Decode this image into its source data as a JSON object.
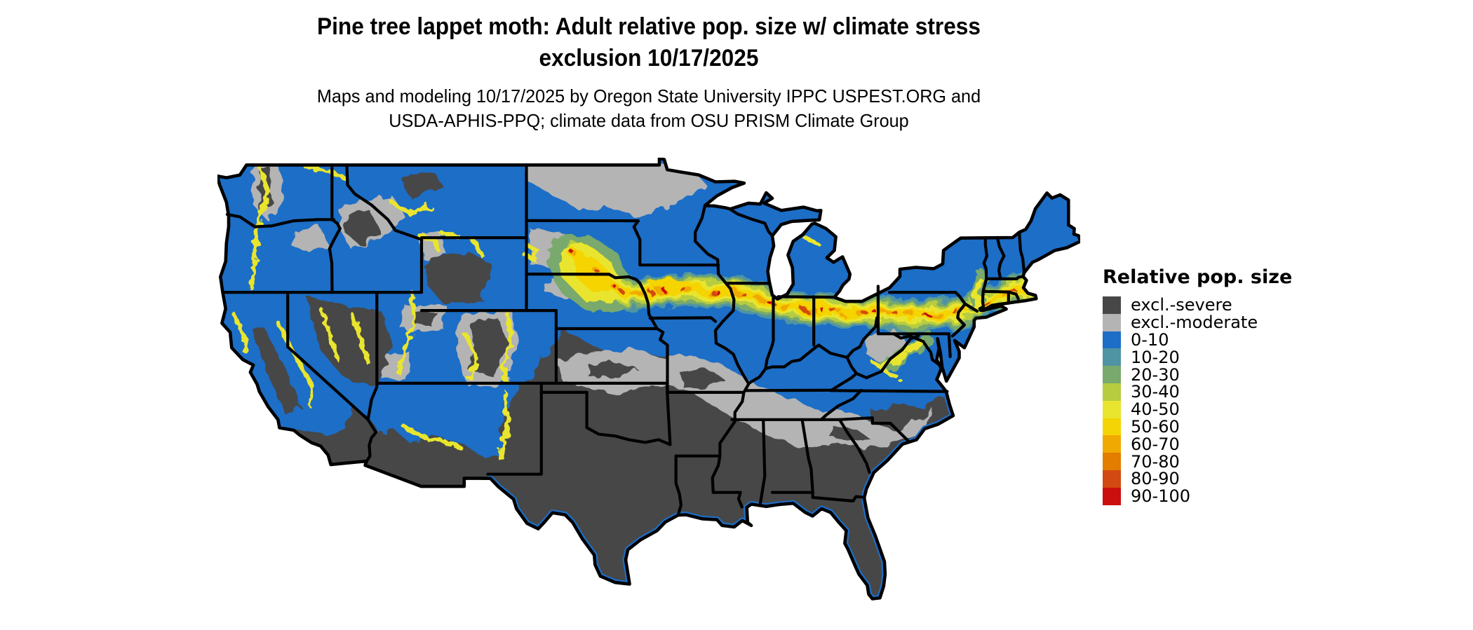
{
  "title": {
    "line1": "Pine tree lappet moth: Adult relative pop. size w/ climate stress",
    "line2": "exclusion 10/17/2025"
  },
  "subtitle": {
    "line1": "Maps and modeling 10/17/2025 by Oregon State University IPPC USPEST.ORG and",
    "line2": "USDA-APHIS-PPQ; climate data from OSU PRISM Climate Group"
  },
  "legend": {
    "title": "Relative pop. size",
    "items": [
      {
        "label": "excl.-severe",
        "color": "#474747"
      },
      {
        "label": "excl.-moderate",
        "color": "#b4b4b4"
      },
      {
        "label": "0-10",
        "color": "#1c6ec7"
      },
      {
        "label": "10-20",
        "color": "#4f94a3"
      },
      {
        "label": "20-30",
        "color": "#79a96c"
      },
      {
        "label": "30-40",
        "color": "#b7cc3f"
      },
      {
        "label": "40-50",
        "color": "#e9e52f"
      },
      {
        "label": "50-60",
        "color": "#f5d405"
      },
      {
        "label": "60-70",
        "color": "#f0a900"
      },
      {
        "label": "70-80",
        "color": "#e27d00"
      },
      {
        "label": "80-90",
        "color": "#d24a11"
      },
      {
        "label": "90-100",
        "color": "#cb0f0f"
      }
    ]
  },
  "map": {
    "background": "#ffffff",
    "boundary_color": "#000000"
  }
}
